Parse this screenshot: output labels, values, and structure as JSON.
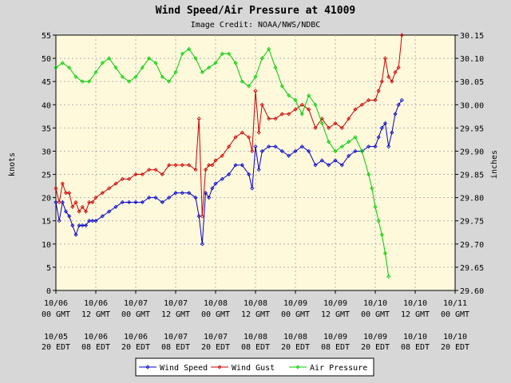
{
  "chart_data": {
    "type": "line",
    "title": "Wind Speed/Air Pressure at 41009",
    "subtitle": "Image Credit: NOAA/NWS/NDBC",
    "ylabel_left": "knots",
    "ylabel_right": "inches",
    "ylim_left": [
      0,
      55
    ],
    "ylim_right": [
      29.6,
      30.15
    ],
    "yticks_left": [
      "0",
      "5",
      "10",
      "15",
      "20",
      "25",
      "30",
      "35",
      "40",
      "45",
      "50",
      "55"
    ],
    "yticks_right": [
      "29.60",
      "29.65",
      "29.70",
      "29.75",
      "29.80",
      "29.85",
      "29.90",
      "29.95",
      "30.00",
      "30.05",
      "30.10",
      "30.15"
    ],
    "x_unit": "hours since 10/06 00 GMT",
    "xlim": [
      0,
      120
    ],
    "xticks_gmt": [
      {
        "top": "10/06",
        "bottom": "00 GMT"
      },
      {
        "top": "10/06",
        "bottom": "12 GMT"
      },
      {
        "top": "10/07",
        "bottom": "00 GMT"
      },
      {
        "top": "10/07",
        "bottom": "12 GMT"
      },
      {
        "top": "10/08",
        "bottom": "00 GMT"
      },
      {
        "top": "10/08",
        "bottom": "12 GMT"
      },
      {
        "top": "10/09",
        "bottom": "00 GMT"
      },
      {
        "top": "10/09",
        "bottom": "12 GMT"
      },
      {
        "top": "10/10",
        "bottom": "00 GMT"
      },
      {
        "top": "10/10",
        "bottom": "12 GMT"
      },
      {
        "top": "10/11",
        "bottom": "00 GMT"
      }
    ],
    "xticks_edt": [
      {
        "top": "10/05",
        "bottom": "20 EDT"
      },
      {
        "top": "10/06",
        "bottom": "08 EDT"
      },
      {
        "top": "10/06",
        "bottom": "20 EDT"
      },
      {
        "top": "10/07",
        "bottom": "08 EDT"
      },
      {
        "top": "10/07",
        "bottom": "20 EDT"
      },
      {
        "top": "10/08",
        "bottom": "08 EDT"
      },
      {
        "top": "10/08",
        "bottom": "20 EDT"
      },
      {
        "top": "10/09",
        "bottom": "08 EDT"
      },
      {
        "top": "10/09",
        "bottom": "20 EDT"
      },
      {
        "top": "10/10",
        "bottom": "08 EDT"
      },
      {
        "top": "10/10",
        "bottom": "20 EDT"
      }
    ],
    "grid": true,
    "legend_position": "bottom",
    "series": [
      {
        "name": "Wind Speed",
        "color": "#0000cc",
        "axis": "left",
        "x": [
          0,
          1,
          2,
          3,
          4,
          5,
          6,
          7,
          8,
          9,
          10,
          11,
          12,
          14,
          16,
          18,
          20,
          22,
          24,
          26,
          28,
          30,
          32,
          34,
          36,
          38,
          40,
          42,
          43,
          44,
          45,
          46,
          47,
          48,
          50,
          52,
          54,
          56,
          58,
          59,
          60,
          61,
          62,
          64,
          66,
          68,
          70,
          72,
          74,
          76,
          78,
          80,
          82,
          84,
          86,
          88,
          90,
          92,
          94,
          96,
          97,
          98,
          99,
          100,
          101,
          102,
          103,
          104
        ],
        "values": [
          19,
          15,
          19,
          17,
          16,
          14,
          12,
          14,
          14,
          14,
          15,
          15,
          15,
          16,
          17,
          18,
          19,
          19,
          19,
          19,
          20,
          20,
          19,
          20,
          21,
          21,
          21,
          20,
          16,
          10,
          21,
          20,
          22,
          23,
          24,
          25,
          27,
          27,
          25,
          22,
          31,
          26,
          30,
          31,
          31,
          30,
          29,
          30,
          31,
          30,
          27,
          28,
          27,
          28,
          27,
          29,
          30,
          30,
          31,
          31,
          33,
          35,
          36,
          31,
          34,
          38,
          40,
          41
        ]
      },
      {
        "name": "Wind Gust",
        "color": "#cc0000",
        "axis": "left",
        "x": [
          0,
          1,
          2,
          3,
          4,
          5,
          6,
          7,
          8,
          9,
          10,
          11,
          12,
          14,
          16,
          18,
          20,
          22,
          24,
          26,
          28,
          30,
          32,
          34,
          36,
          38,
          40,
          42,
          43,
          44,
          45,
          46,
          47,
          48,
          50,
          52,
          54,
          56,
          58,
          59,
          60,
          61,
          62,
          64,
          66,
          68,
          70,
          72,
          74,
          76,
          78,
          80,
          82,
          84,
          86,
          88,
          90,
          92,
          94,
          96,
          97,
          98,
          99,
          100,
          101,
          102,
          103,
          104
        ],
        "values": [
          22,
          19,
          23,
          21,
          21,
          18,
          19,
          17,
          18,
          17,
          19,
          19,
          20,
          21,
          22,
          23,
          24,
          24,
          25,
          25,
          26,
          26,
          25,
          27,
          27,
          27,
          27,
          26,
          37,
          16,
          26,
          27,
          27,
          28,
          29,
          31,
          33,
          34,
          33,
          30,
          43,
          34,
          40,
          37,
          37,
          38,
          38,
          39,
          40,
          39,
          35,
          37,
          35,
          36,
          35,
          37,
          39,
          40,
          41,
          41,
          43,
          45,
          50,
          46,
          45,
          47,
          48,
          55
        ]
      },
      {
        "name": "Air Pressure",
        "color": "#00cc00",
        "axis": "right",
        "x": [
          0,
          2,
          4,
          6,
          8,
          10,
          12,
          14,
          16,
          18,
          20,
          22,
          24,
          26,
          28,
          30,
          32,
          34,
          36,
          38,
          40,
          42,
          44,
          46,
          48,
          50,
          52,
          54,
          56,
          58,
          60,
          62,
          64,
          66,
          68,
          70,
          72,
          74,
          76,
          78,
          80,
          82,
          84,
          86,
          88,
          90,
          92,
          94,
          95,
          96,
          97,
          98,
          99,
          100
        ],
        "values": [
          30.08,
          30.09,
          30.08,
          30.06,
          30.05,
          30.05,
          30.07,
          30.09,
          30.1,
          30.08,
          30.06,
          30.05,
          30.06,
          30.08,
          30.1,
          30.09,
          30.06,
          30.05,
          30.07,
          30.11,
          30.12,
          30.1,
          30.07,
          30.08,
          30.09,
          30.11,
          30.11,
          30.09,
          30.05,
          30.04,
          30.06,
          30.1,
          30.12,
          30.08,
          30.04,
          30.02,
          30.01,
          29.98,
          30.02,
          30.0,
          29.96,
          29.92,
          29.9,
          29.91,
          29.92,
          29.93,
          29.9,
          29.85,
          29.82,
          29.78,
          29.75,
          29.72,
          29.68,
          29.63
        ]
      }
    ]
  }
}
